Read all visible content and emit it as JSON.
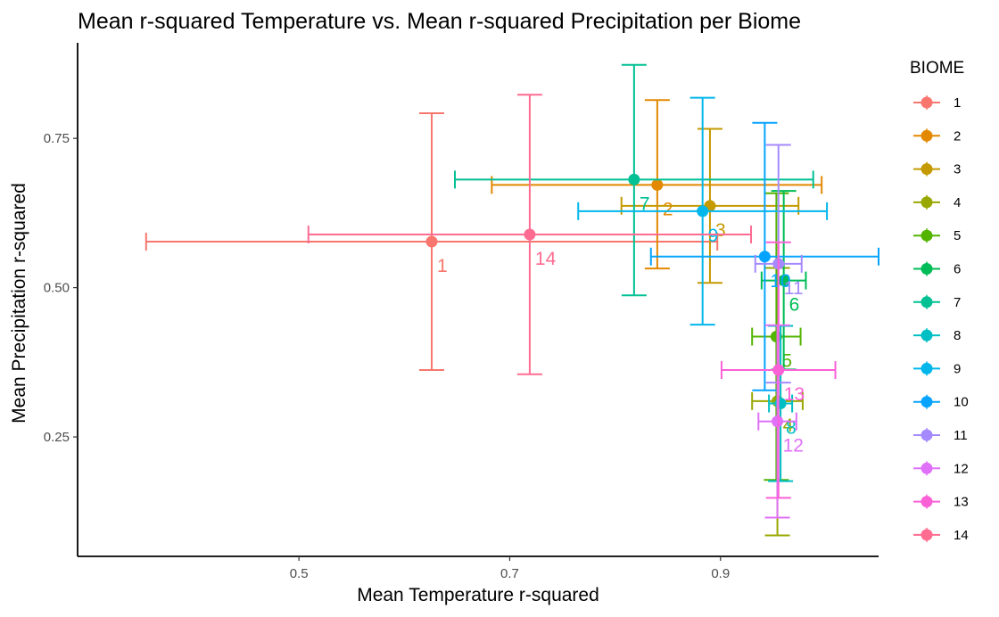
{
  "chart_data": {
    "type": "scatter",
    "title": "Mean r-squared Temperature vs. Mean r-squared Precipitation per Biome",
    "xlabel": "Mean Temperature r-squared",
    "ylabel": "Mean Precipitation r-squared",
    "xlim": [
      0.29,
      1.05
    ],
    "ylim": [
      0.05,
      0.91
    ],
    "xticks": [
      0.5,
      0.7,
      0.9
    ],
    "xtick_labels": [
      "0.5",
      "0.7",
      "0.9"
    ],
    "yticks": [
      0.25,
      0.5,
      0.75
    ],
    "ytick_labels": [
      "0.25",
      "0.50",
      "0.75"
    ],
    "grid": false,
    "legend": {
      "title": "BIOME",
      "position": "right"
    },
    "series": [
      {
        "name": "1",
        "label": "1",
        "color": "#F8766D",
        "x": 0.626,
        "y": 0.577,
        "xerr": [
          0.355,
          0.897
        ],
        "yerr": [
          0.362,
          0.792
        ]
      },
      {
        "name": "2",
        "label": "2",
        "color": "#E38900",
        "x": 0.84,
        "y": 0.672,
        "xerr": [
          0.683,
          0.996
        ],
        "yerr": [
          0.532,
          0.814
        ]
      },
      {
        "name": "3",
        "label": "3",
        "color": "#C49A00",
        "x": 0.89,
        "y": 0.637,
        "xerr": [
          0.806,
          0.974
        ],
        "yerr": [
          0.508,
          0.766
        ]
      },
      {
        "name": "4",
        "label": "4",
        "color": "#99A800",
        "x": 0.954,
        "y": 0.31,
        "xerr": [
          0.93,
          0.978
        ],
        "yerr": [
          0.085,
          0.533
        ]
      },
      {
        "name": "5",
        "label": "5",
        "color": "#53B400",
        "x": 0.953,
        "y": 0.418,
        "xerr": [
          0.93,
          0.976
        ],
        "yerr": [
          0.178,
          0.658
        ]
      },
      {
        "name": "6",
        "label": "6",
        "color": "#00BC56",
        "x": 0.96,
        "y": 0.512,
        "xerr": [
          0.939,
          0.981
        ],
        "yerr": [
          0.363,
          0.662
        ]
      },
      {
        "name": "7",
        "label": "7",
        "color": "#00C094",
        "x": 0.818,
        "y": 0.681,
        "xerr": [
          0.648,
          0.988
        ],
        "yerr": [
          0.487,
          0.873
        ]
      },
      {
        "name": "8",
        "label": "8",
        "color": "#00BFC4",
        "x": 0.957,
        "y": 0.306,
        "xerr": [
          0.946,
          0.968
        ],
        "yerr": [
          0.176,
          0.436
        ]
      },
      {
        "name": "9",
        "label": "9",
        "color": "#00B6EB",
        "x": 0.883,
        "y": 0.628,
        "xerr": [
          0.765,
          1.001
        ],
        "yerr": [
          0.438,
          0.818
        ]
      },
      {
        "name": "10",
        "label": "10",
        "color": "#06A4FF",
        "x": 0.942,
        "y": 0.552,
        "xerr": [
          0.834,
          1.05
        ],
        "yerr": [
          0.328,
          0.776
        ]
      },
      {
        "name": "11",
        "label": "11",
        "color": "#A58AFF",
        "x": 0.955,
        "y": 0.54,
        "xerr": [
          0.933,
          0.977
        ],
        "yerr": [
          0.341,
          0.739
        ]
      },
      {
        "name": "12",
        "label": "12",
        "color": "#DF70F8",
        "x": 0.954,
        "y": 0.276,
        "xerr": [
          0.936,
          0.972
        ],
        "yerr": [
          0.115,
          0.437
        ]
      },
      {
        "name": "13",
        "label": "13",
        "color": "#FB61D7",
        "x": 0.955,
        "y": 0.362,
        "xerr": [
          0.901,
          1.009
        ],
        "yerr": [
          0.148,
          0.576
        ]
      },
      {
        "name": "14",
        "label": "14",
        "color": "#FF6C91",
        "x": 0.719,
        "y": 0.589,
        "xerr": [
          0.509,
          0.929
        ],
        "yerr": [
          0.355,
          0.823
        ]
      }
    ]
  }
}
